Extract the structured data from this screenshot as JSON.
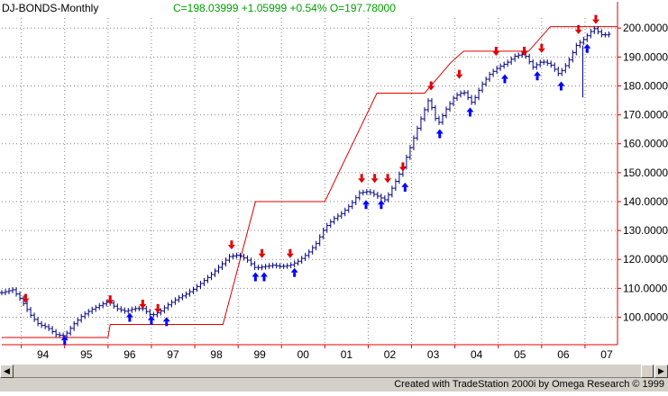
{
  "header": {
    "title": "DJ-BONDS-Monthly",
    "quote": "C=198.03999  +1.05999  +0.54%  O=197.78000"
  },
  "footer": {
    "credit": "Created with TradeStation 2000i by Omega Research © 1999"
  },
  "scrollbar": {
    "left_arrow": "◀",
    "right_arrow": "▶"
  },
  "colors": {
    "price": "#000080",
    "stop": "#e00000",
    "buy_arrow": "#0000ff",
    "sell_arrow": "#e00000",
    "grid": "#808080",
    "axis": "#e00000"
  },
  "chart_data": {
    "type": "line",
    "title": "DJ-BONDS-Monthly",
    "x_ticks": [
      "94",
      "95",
      "96",
      "97",
      "98",
      "99",
      "00",
      "01",
      "02",
      "03",
      "04",
      "05",
      "06",
      "07"
    ],
    "y_ticks": [
      "100.0000",
      "110.0000",
      "120.0000",
      "130.0000",
      "140.0000",
      "150.0000",
      "160.0000",
      "170.0000",
      "180.0000",
      "190.0000",
      "200.0000"
    ],
    "ylim": [
      90.5,
      203.5
    ],
    "xlim": [
      1993.55,
      2007.75
    ],
    "grid": true,
    "series": [
      {
        "points": [
          [
            1993.55,
            108.5
          ],
          [
            1993.8,
            109.5
          ],
          [
            1994.0,
            106
          ],
          [
            1994.2,
            101
          ],
          [
            1994.4,
            97.5
          ],
          [
            1994.6,
            96.5
          ],
          [
            1994.8,
            94
          ],
          [
            1995.0,
            93.5
          ],
          [
            1995.2,
            97.5
          ],
          [
            1995.4,
            100.5
          ],
          [
            1995.6,
            102.5
          ],
          [
            1995.8,
            104
          ],
          [
            1996.0,
            105.5
          ],
          [
            1996.2,
            103
          ],
          [
            1996.4,
            102
          ],
          [
            1996.6,
            103
          ],
          [
            1996.8,
            103
          ],
          [
            1997.0,
            100.5
          ],
          [
            1997.2,
            102
          ],
          [
            1997.4,
            104.5
          ],
          [
            1997.6,
            106.5
          ],
          [
            1997.8,
            108
          ],
          [
            1998.0,
            110
          ],
          [
            1998.2,
            112.5
          ],
          [
            1998.4,
            115
          ],
          [
            1998.6,
            118
          ],
          [
            1998.8,
            121
          ],
          [
            1999.0,
            121.5
          ],
          [
            1999.2,
            120
          ],
          [
            1999.4,
            117
          ],
          [
            1999.6,
            117.5
          ],
          [
            1999.8,
            118
          ],
          [
            2000.0,
            117.5
          ],
          [
            2000.2,
            118
          ],
          [
            2000.4,
            119.5
          ],
          [
            2000.6,
            122
          ],
          [
            2000.8,
            125.5
          ],
          [
            2001.0,
            131
          ],
          [
            2001.2,
            134
          ],
          [
            2001.4,
            136
          ],
          [
            2001.6,
            139
          ],
          [
            2001.8,
            143
          ],
          [
            2002.0,
            143.5
          ],
          [
            2002.2,
            142
          ],
          [
            2002.4,
            140.5
          ],
          [
            2002.6,
            146
          ],
          [
            2002.8,
            152
          ],
          [
            2003.0,
            160
          ],
          [
            2003.2,
            168
          ],
          [
            2003.4,
            175.5
          ],
          [
            2003.6,
            166.5
          ],
          [
            2003.8,
            172
          ],
          [
            2004.0,
            176.5
          ],
          [
            2004.2,
            178
          ],
          [
            2004.4,
            174
          ],
          [
            2004.6,
            180
          ],
          [
            2004.8,
            184
          ],
          [
            2005.0,
            186.5
          ],
          [
            2005.2,
            188
          ],
          [
            2005.4,
            190.5
          ],
          [
            2005.6,
            191
          ],
          [
            2005.8,
            186.5
          ],
          [
            2006.0,
            188.5
          ],
          [
            2006.2,
            187.5
          ],
          [
            2006.4,
            184
          ],
          [
            2006.6,
            188
          ],
          [
            2006.8,
            194
          ],
          [
            2007.0,
            196.5
          ],
          [
            2007.2,
            200
          ],
          [
            2007.4,
            197.5
          ],
          [
            2007.6,
            198.04
          ]
        ]
      },
      {
        "points": [
          [
            1993.55,
            93
          ],
          [
            1996.0,
            93
          ],
          [
            1996.05,
            97.5
          ],
          [
            1998.65,
            97.5
          ],
          [
            1999.4,
            140
          ],
          [
            2001.0,
            140
          ],
          [
            2002.2,
            177.5
          ],
          [
            2003.3,
            177.5
          ],
          [
            2003.9,
            188
          ],
          [
            2004.2,
            192
          ],
          [
            2005.7,
            192
          ],
          [
            2006.2,
            200.5
          ],
          [
            2007.75,
            200.5
          ]
        ]
      }
    ],
    "anomaly_low": [
      2006.95,
      176
    ],
    "sell_arrows": [
      [
        1994.1,
        106.5
      ],
      [
        1996.05,
        106
      ],
      [
        1996.8,
        104.5
      ],
      [
        1997.15,
        103
      ],
      [
        1998.85,
        125
      ],
      [
        1999.55,
        122
      ],
      [
        2000.2,
        122
      ],
      [
        2001.85,
        148
      ],
      [
        2002.15,
        148
      ],
      [
        2002.45,
        148
      ],
      [
        2002.8,
        152
      ],
      [
        2003.45,
        180
      ],
      [
        2004.1,
        184
      ],
      [
        2004.95,
        192
      ],
      [
        2005.6,
        192
      ],
      [
        2006.0,
        193
      ],
      [
        2006.85,
        199.5
      ],
      [
        2007.25,
        203
      ]
    ],
    "buy_arrows": [
      [
        1995.0,
        92
      ],
      [
        1996.5,
        100
      ],
      [
        1997.0,
        99
      ],
      [
        1997.35,
        98.5
      ],
      [
        1999.4,
        114
      ],
      [
        1999.6,
        114
      ],
      [
        2000.3,
        115.5
      ],
      [
        2001.95,
        139
      ],
      [
        2002.3,
        139
      ],
      [
        2002.85,
        145
      ],
      [
        2003.65,
        163.5
      ],
      [
        2004.35,
        171
      ],
      [
        2005.15,
        182.5
      ],
      [
        2005.9,
        183.5
      ],
      [
        2006.45,
        180
      ],
      [
        2007.05,
        193
      ]
    ]
  }
}
